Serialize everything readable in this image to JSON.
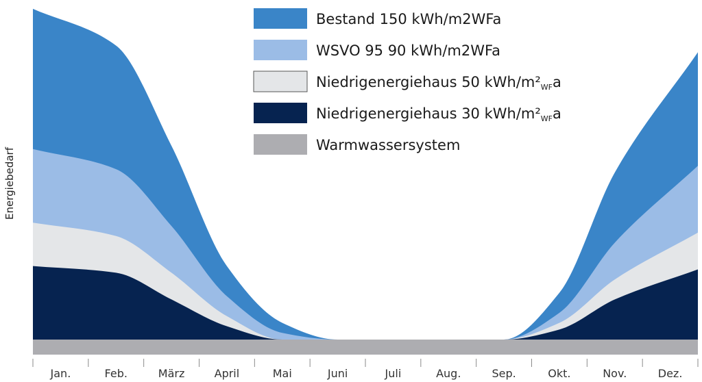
{
  "chart_data": {
    "type": "area",
    "stacked": false,
    "title": "",
    "xlabel": "",
    "ylabel": "Energiebedarf",
    "categories": [
      "Jan.",
      "Feb.",
      "März",
      "April",
      "Mai",
      "Juni",
      "Juli",
      "Aug.",
      "Sep.",
      "Okt.",
      "Nov.",
      "Dez."
    ],
    "ylim": [
      0,
      100
    ],
    "grid": false,
    "legend_position": "top-center",
    "series": [
      {
        "name": "Bestand 150 kWh/m2WFa",
        "color": "#3a85c8",
        "values": [
          99,
          88,
          58,
          22,
          5,
          0,
          0,
          0,
          0,
          14,
          50,
          86
        ]
      },
      {
        "name": "WSVO 95 90 kWh/m2WFa",
        "color": "#9bbce6",
        "values": [
          57,
          51,
          34,
          13,
          2,
          0,
          0,
          0,
          0,
          8,
          29,
          52
        ]
      },
      {
        "name": "Niedrigenergiehaus 50 kWh/m²",
        "name_sub": "WF",
        "name_suffix": "a",
        "color": "#e4e6e8",
        "values": [
          35,
          31,
          20,
          7,
          0,
          0,
          0,
          0,
          0,
          5,
          18,
          32
        ]
      },
      {
        "name": "Niedrigenergiehaus 30 kWh/m²",
        "name_sub": "WF",
        "name_suffix": "a",
        "color": "#062350",
        "values": [
          22,
          20,
          12,
          4,
          0,
          0,
          0,
          0,
          0,
          3,
          12,
          21
        ]
      },
      {
        "name": "Warmwassersystem",
        "color": "#adadb1",
        "values": [
          4,
          4,
          4,
          4,
          4,
          4,
          4,
          4,
          4,
          4,
          4,
          4
        ]
      }
    ]
  }
}
